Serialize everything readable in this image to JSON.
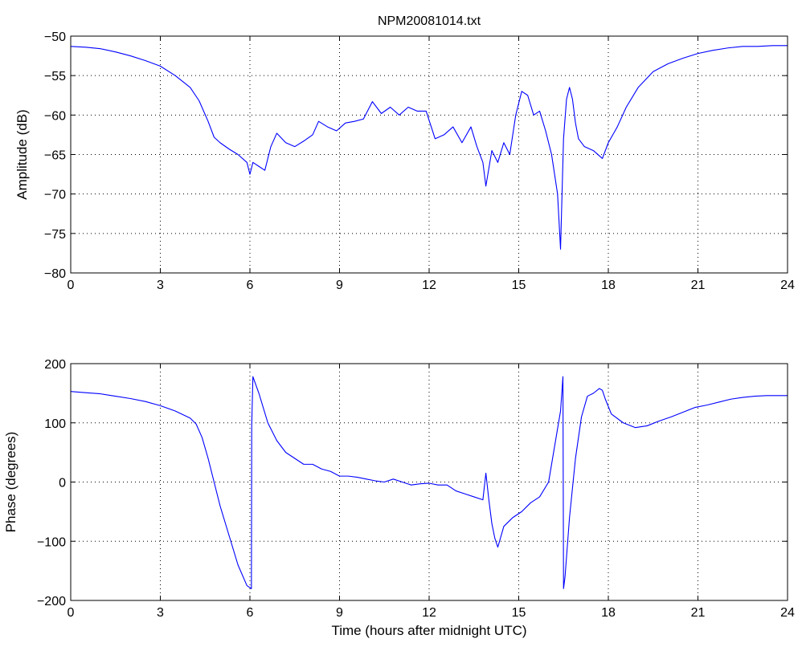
{
  "colors": {
    "line": "#0000ff",
    "axes": "#000000",
    "grid": "#000000",
    "background": "#ffffff"
  },
  "chart_data": [
    {
      "type": "line",
      "title": "NPM20081014.txt",
      "xlabel": "",
      "ylabel": "Amplitude (dB)",
      "xlim": [
        0,
        24
      ],
      "ylim": [
        -80,
        -50
      ],
      "xticks": [
        0,
        3,
        6,
        9,
        12,
        15,
        18,
        21,
        24
      ],
      "yticks": [
        -80,
        -75,
        -70,
        -65,
        -60,
        -55,
        -50
      ],
      "grid": true,
      "series": [
        {
          "x": [
            0,
            0.5,
            1.0,
            1.5,
            2.0,
            2.5,
            3.0,
            3.5,
            4.0,
            4.3,
            4.6,
            4.8,
            5.0,
            5.3,
            5.6,
            5.9,
            6.0,
            6.1,
            6.3,
            6.5,
            6.7,
            6.9,
            7.2,
            7.5,
            7.8,
            8.1,
            8.3,
            8.6,
            8.9,
            9.2,
            9.5,
            9.8,
            10.1,
            10.4,
            10.7,
            11.0,
            11.3,
            11.6,
            11.9,
            12.2,
            12.5,
            12.8,
            13.1,
            13.4,
            13.6,
            13.8,
            13.9,
            14.1,
            14.3,
            14.5,
            14.7,
            14.9,
            15.1,
            15.3,
            15.5,
            15.7,
            15.9,
            16.1,
            16.3,
            16.4,
            16.5,
            16.6,
            16.7,
            16.8,
            16.9,
            17.0,
            17.2,
            17.5,
            17.8,
            18.0,
            18.3,
            18.6,
            19.0,
            19.5,
            20.0,
            20.5,
            21.0,
            21.5,
            22.0,
            22.5,
            23.0,
            23.5,
            24.0
          ],
          "y": [
            -51.3,
            -51.4,
            -51.6,
            -52.0,
            -52.5,
            -53.1,
            -53.8,
            -55.0,
            -56.5,
            -58.2,
            -60.8,
            -62.8,
            -63.5,
            -64.3,
            -65.0,
            -66.0,
            -67.5,
            -66.0,
            -66.5,
            -67.0,
            -64.0,
            -62.3,
            -63.5,
            -64.0,
            -63.3,
            -62.5,
            -60.8,
            -61.5,
            -62.0,
            -61.0,
            -60.8,
            -60.5,
            -58.3,
            -59.8,
            -59.0,
            -60.0,
            -59.0,
            -59.5,
            -59.5,
            -63.0,
            -62.5,
            -61.5,
            -63.5,
            -61.5,
            -64.0,
            -66.0,
            -69.0,
            -64.5,
            -66.0,
            -63.5,
            -65.0,
            -60.0,
            -57.0,
            -57.5,
            -60.0,
            -59.5,
            -62.0,
            -65.0,
            -70.0,
            -77.0,
            -63.0,
            -58.0,
            -56.5,
            -58.0,
            -61.0,
            -63.0,
            -64.0,
            -64.5,
            -65.5,
            -63.5,
            -61.5,
            -59.0,
            -56.5,
            -54.5,
            -53.5,
            -52.8,
            -52.2,
            -51.8,
            -51.5,
            -51.3,
            -51.3,
            -51.2,
            -51.2
          ]
        }
      ]
    },
    {
      "type": "line",
      "title": "",
      "xlabel": "Time (hours after midnight UTC)",
      "ylabel": "Phase (degrees)",
      "xlim": [
        0,
        24
      ],
      "ylim": [
        -200,
        200
      ],
      "xticks": [
        0,
        3,
        6,
        9,
        12,
        15,
        18,
        21,
        24
      ],
      "yticks": [
        -200,
        -100,
        0,
        100,
        200
      ],
      "grid": true,
      "series": [
        {
          "x": [
            0,
            0.5,
            1.0,
            1.5,
            2.0,
            2.5,
            3.0,
            3.5,
            4.0,
            4.2,
            4.4,
            4.6,
            4.8,
            5.0,
            5.3,
            5.6,
            5.9,
            6.05,
            6.06,
            6.1,
            6.3,
            6.6,
            6.9,
            7.2,
            7.5,
            7.8,
            8.1,
            8.4,
            8.7,
            9.0,
            9.3,
            9.6,
            9.9,
            10.2,
            10.5,
            10.8,
            11.1,
            11.4,
            11.7,
            12.0,
            12.3,
            12.6,
            12.9,
            13.2,
            13.5,
            13.8,
            13.9,
            14.0,
            14.1,
            14.2,
            14.3,
            14.5,
            14.8,
            15.1,
            15.4,
            15.7,
            16.0,
            16.2,
            16.4,
            16.48,
            16.5,
            16.55,
            16.7,
            16.9,
            17.1,
            17.3,
            17.5,
            17.7,
            17.8,
            17.9,
            18.1,
            18.5,
            18.9,
            19.3,
            19.7,
            20.1,
            20.5,
            20.9,
            21.3,
            21.7,
            22.1,
            22.5,
            22.9,
            23.3,
            23.7,
            24.0
          ],
          "y": [
            153,
            151,
            149,
            145,
            141,
            136,
            129,
            120,
            108,
            98,
            75,
            40,
            0,
            -40,
            -90,
            -140,
            -175,
            -180,
            95,
            178,
            150,
            100,
            70,
            50,
            40,
            30,
            30,
            22,
            18,
            10,
            10,
            8,
            5,
            2,
            0,
            5,
            0,
            -5,
            -3,
            -2,
            -5,
            -5,
            -15,
            -20,
            -25,
            -30,
            15,
            -30,
            -70,
            -95,
            -110,
            -75,
            -60,
            -50,
            -35,
            -25,
            0,
            60,
            120,
            178,
            -180,
            -160,
            -60,
            40,
            110,
            145,
            150,
            158,
            155,
            140,
            115,
            100,
            92,
            95,
            103,
            110,
            118,
            126,
            130,
            135,
            140,
            143,
            145,
            146,
            146,
            146
          ]
        }
      ]
    }
  ]
}
